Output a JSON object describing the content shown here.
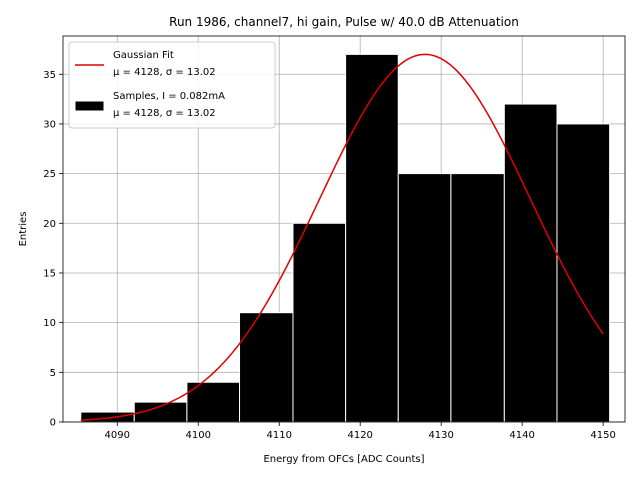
{
  "chart_data": {
    "type": "bar",
    "title": "Run 1986, channel7, hi gain, Pulse w/ 40.0 dB Attenuation",
    "xlabel": "Energy from OFCs [ADC Counts]",
    "ylabel": "Entries",
    "xlim": [
      4083.3,
      4152.7
    ],
    "ylim": [
      0,
      38.85
    ],
    "xticks": [
      4090,
      4100,
      4110,
      4120,
      4130,
      4140,
      4150
    ],
    "yticks": [
      0,
      5,
      10,
      15,
      20,
      25,
      30,
      35
    ],
    "grid": true,
    "legend_position": "top-left",
    "bins": [
      {
        "start": 4085.5,
        "end": 4092.1,
        "value": 1
      },
      {
        "start": 4092.1,
        "end": 4098.6,
        "value": 2
      },
      {
        "start": 4098.6,
        "end": 4105.1,
        "value": 4
      },
      {
        "start": 4105.1,
        "end": 4111.7,
        "value": 11
      },
      {
        "start": 4111.7,
        "end": 4118.2,
        "value": 20
      },
      {
        "start": 4118.2,
        "end": 4124.7,
        "value": 37
      },
      {
        "start": 4124.7,
        "end": 4131.2,
        "value": 25
      },
      {
        "start": 4131.2,
        "end": 4137.8,
        "value": 25
      },
      {
        "start": 4137.8,
        "end": 4144.3,
        "value": 32
      },
      {
        "start": 4144.3,
        "end": 4150.8,
        "value": 30
      }
    ],
    "series": [
      {
        "name": "Gaussian Fit",
        "type": "line",
        "color": "#e00000",
        "mu": 4128,
        "sigma": 13.02,
        "amplitude": 37,
        "x_range": [
          4085.5,
          4150
        ]
      },
      {
        "name": "Samples, I = 0.082mA",
        "type": "histogram",
        "color": "#000000",
        "edgecolor": "#ffffff"
      }
    ],
    "legend": [
      {
        "line1": "Gaussian Fit",
        "line2": "μ = 4128, σ = 13.02"
      },
      {
        "line1": "Samples, I = 0.082mA",
        "line2": "μ = 4128, σ = 13.02"
      }
    ]
  }
}
